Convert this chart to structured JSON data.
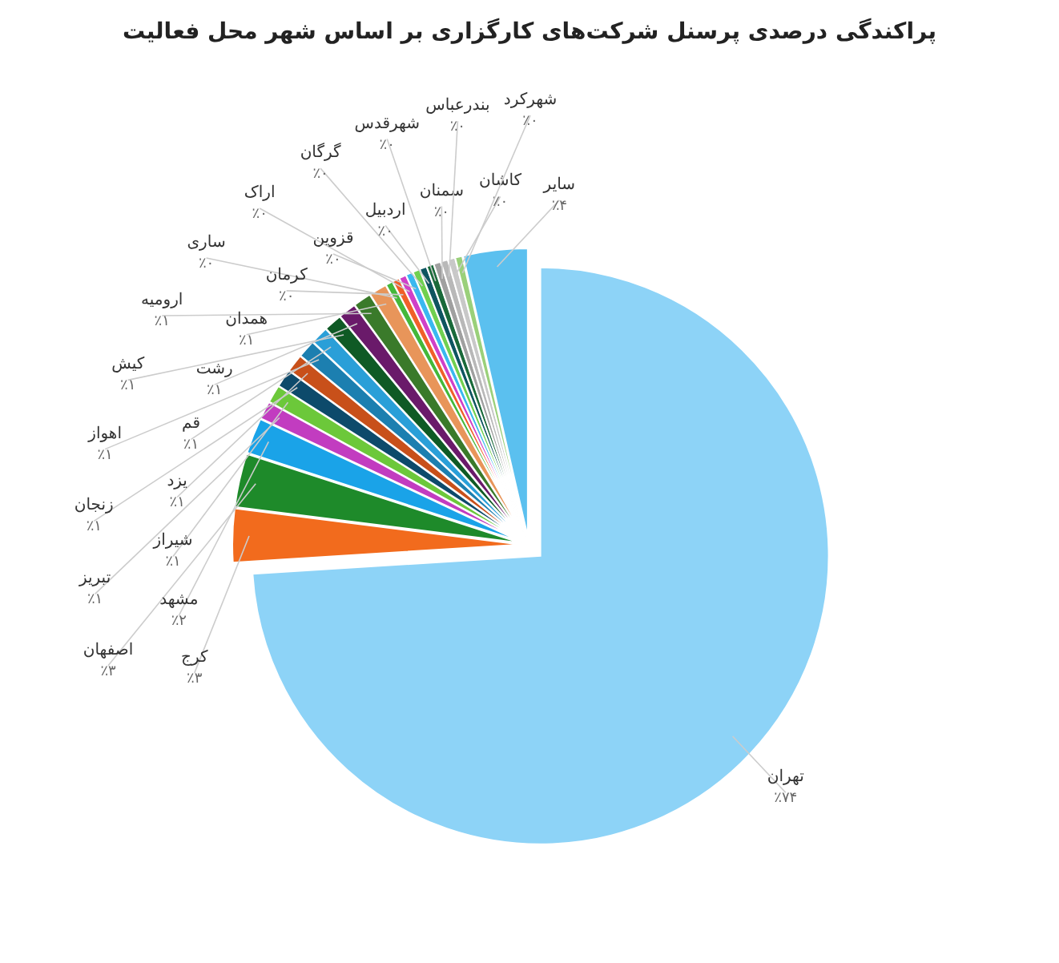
{
  "chart_data": {
    "type": "pie",
    "title": "پراکندگی درصدی پرسنل شرکت‌های کارگزاری بر اساس شهر محل فعالیت",
    "categories": [
      "تهران",
      "کرج",
      "اصفهان",
      "مشهد",
      "تبریز",
      "شیراز",
      "زنجان",
      "یزد",
      "اهواز",
      "قم",
      "کیش",
      "رشت",
      "ارومیه",
      "همدان",
      "ساری",
      "کرمان",
      "اراک",
      "قزوین",
      "گرگان",
      "اردبیل",
      "شهرقدس",
      "سمنان",
      "بندرعباس",
      "کاشان",
      "شهرکرد",
      "سایر"
    ],
    "values": [
      74,
      3,
      3,
      2,
      1,
      1,
      1,
      1,
      1,
      1,
      1,
      1,
      1,
      1,
      0.4,
      0.4,
      0.4,
      0.4,
      0.4,
      0.4,
      0.4,
      0.4,
      0.4,
      0.4,
      0.4,
      3.6
    ],
    "value_labels": [
      "٪۷۴",
      "٪۳",
      "٪۳",
      "٪۲",
      "٪۱",
      "٪۱",
      "٪۱",
      "٪۱",
      "٪۱",
      "٪۱",
      "٪۱",
      "٪۱",
      "٪۱",
      "٪۱",
      "٪۰",
      "٪۰",
      "٪۰",
      "٪۰",
      "٪۰",
      "٪۰",
      "٪۰",
      "٪۰",
      "٪۰",
      "٪۰",
      "٪۰",
      "٪۴"
    ],
    "colors": [
      "#8dd3f7",
      "#f26b1d",
      "#1e8a2a",
      "#1aa3e8",
      "#c23cc0",
      "#6cc83a",
      "#0d4a6b",
      "#c8501a",
      "#1c7fb0",
      "#2a9fd8",
      "#0f5a25",
      "#6a1a6a",
      "#3a7a2a",
      "#e8955a",
      "#44b83a",
      "#f0602a",
      "#d040c8",
      "#3ab8f0",
      "#70d050",
      "#0e5560",
      "#1a6a3a",
      "#a0a0a0",
      "#b8b8b8",
      "#c8c8c8",
      "#9ad07a",
      "#5bc0ef"
    ]
  }
}
